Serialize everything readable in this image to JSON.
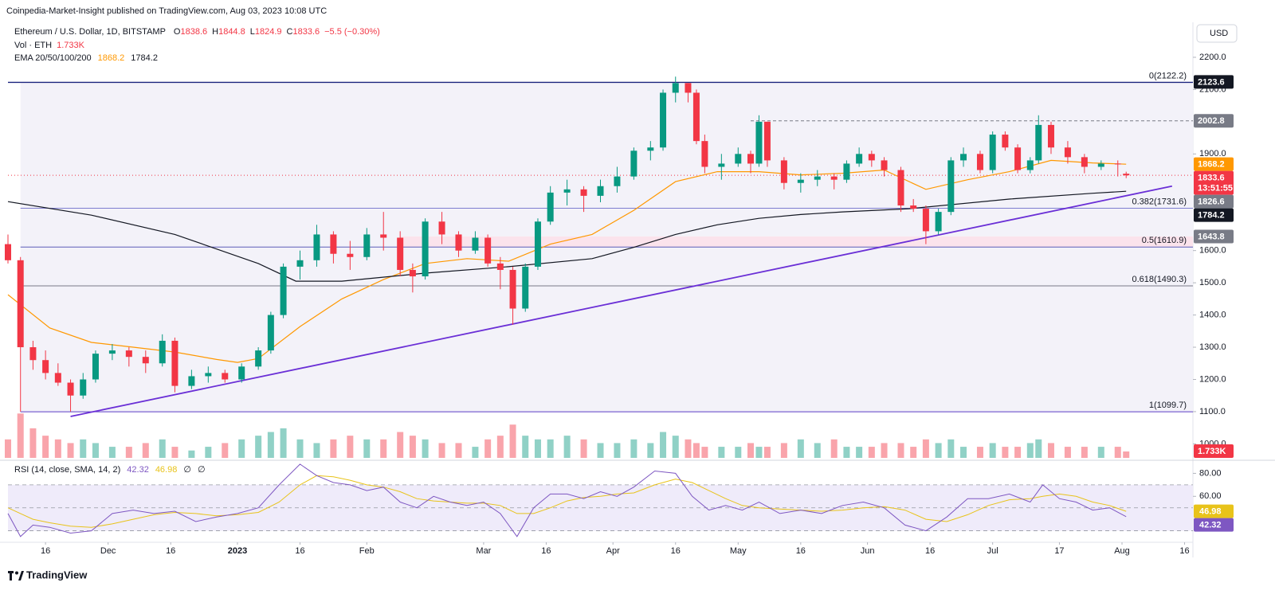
{
  "header": {
    "publisher": "Coinpedia-Market-Insight published on TradingView.com, Aug 03, 2023 10:08 UTC",
    "brand": "TradingView"
  },
  "chart_data": [
    {
      "type": "candlestick",
      "title": "Ethereum / U.S. Dollar, 1D, BITSTAMP",
      "currency": "USD",
      "ohlc_labels": [
        "O",
        "H",
        "L",
        "C"
      ],
      "change_label": "−5.5 (−0.30%)",
      "volume_title": "Vol · ETH",
      "volume_label": "1.733K",
      "ema_title": "EMA 20/50/100/200",
      "up_color": "#089981",
      "down_color": "#f23645",
      "x": [
        0,
        3,
        6,
        9,
        12,
        15,
        18,
        21,
        25,
        29,
        33,
        37,
        40,
        44,
        48,
        52,
        56,
        60,
        63,
        66,
        70,
        74,
        78,
        82,
        86,
        90,
        94,
        97,
        100,
        104,
        108,
        112,
        115,
        118,
        121,
        124,
        127,
        130,
        134,
        138,
        142,
        146,
        150,
        154,
        157,
        160,
        163,
        165,
        167,
        171,
        175,
        178,
        180,
        182,
        186,
        190,
        194,
        198,
        201,
        204,
        207,
        210,
        214,
        217,
        220,
        223,
        226,
        229,
        233,
        236,
        239,
        242,
        245,
        247,
        250,
        254,
        258,
        262,
        266,
        268
      ],
      "open": [
        1620,
        1570,
        1300,
        1260,
        1220,
        1190,
        1150,
        1200,
        1280,
        1290,
        1270,
        1250,
        1320,
        1180,
        1210,
        1220,
        1200,
        1240,
        1290,
        1400,
        1550,
        1570,
        1650,
        1590,
        1580,
        1650,
        1640,
        1540,
        1520,
        1690,
        1650,
        1600,
        1640,
        1560,
        1540,
        1420,
        1550,
        1690,
        1780,
        1790,
        1770,
        1800,
        1830,
        1910,
        1920,
        2090,
        2120,
        2090,
        1940,
        1860,
        1870,
        1900,
        1870,
        2000,
        1880,
        1810,
        1820,
        1830,
        1820,
        1870,
        1900,
        1880,
        1850,
        1740,
        1730,
        1660,
        1720,
        1880,
        1900,
        1850,
        1960,
        1920,
        1850,
        1880,
        1990,
        1920,
        1890,
        1860,
        1870,
        1838.6
      ],
      "high": [
        1650,
        1580,
        1320,
        1290,
        1250,
        1200,
        1220,
        1290,
        1310,
        1300,
        1290,
        1340,
        1330,
        1230,
        1240,
        1230,
        1250,
        1300,
        1410,
        1560,
        1600,
        1680,
        1660,
        1630,
        1670,
        1720,
        1660,
        1560,
        1700,
        1720,
        1660,
        1660,
        1650,
        1580,
        1550,
        1560,
        1700,
        1800,
        1820,
        1800,
        1820,
        1860,
        1920,
        1940,
        2100,
        2140,
        2120,
        2100,
        1960,
        1900,
        1920,
        1910,
        2020,
        2000,
        1890,
        1840,
        1850,
        1840,
        1880,
        1920,
        1910,
        1890,
        1860,
        1760,
        1740,
        1730,
        1890,
        1920,
        1910,
        1970,
        1970,
        1930,
        1890,
        2020,
        2000,
        1940,
        1900,
        1880,
        1880,
        1844.8
      ],
      "low": [
        1560,
        1100,
        1230,
        1200,
        1180,
        1100,
        1140,
        1190,
        1260,
        1240,
        1220,
        1240,
        1160,
        1170,
        1190,
        1190,
        1190,
        1230,
        1280,
        1390,
        1510,
        1550,
        1560,
        1540,
        1570,
        1600,
        1520,
        1470,
        1510,
        1620,
        1580,
        1590,
        1550,
        1480,
        1370,
        1410,
        1540,
        1680,
        1740,
        1720,
        1750,
        1780,
        1820,
        1880,
        1910,
        2060,
        2060,
        1930,
        1840,
        1820,
        1860,
        1840,
        1860,
        1860,
        1790,
        1780,
        1800,
        1790,
        1810,
        1860,
        1860,
        1830,
        1720,
        1720,
        1620,
        1650,
        1710,
        1860,
        1840,
        1840,
        1910,
        1840,
        1840,
        1870,
        1900,
        1870,
        1840,
        1850,
        1830,
        1824.9
      ],
      "close": [
        1570,
        1300,
        1260,
        1220,
        1190,
        1150,
        1200,
        1280,
        1290,
        1270,
        1250,
        1320,
        1180,
        1210,
        1220,
        1200,
        1240,
        1290,
        1400,
        1550,
        1570,
        1650,
        1590,
        1580,
        1650,
        1640,
        1540,
        1520,
        1690,
        1650,
        1600,
        1640,
        1560,
        1540,
        1420,
        1550,
        1690,
        1780,
        1790,
        1770,
        1800,
        1830,
        1910,
        1920,
        2090,
        2120,
        2090,
        1940,
        1860,
        1870,
        1900,
        1870,
        2000,
        1880,
        1810,
        1820,
        1830,
        1820,
        1870,
        1900,
        1880,
        1850,
        1740,
        1730,
        1660,
        1720,
        1880,
        1900,
        1850,
        1960,
        1920,
        1850,
        1880,
        1990,
        1920,
        1890,
        1860,
        1870,
        1868,
        1833.6
      ],
      "volume": [
        5,
        12,
        8,
        6,
        5,
        4,
        5,
        4,
        3,
        3,
        4,
        5,
        3,
        2,
        3,
        4,
        5,
        6,
        7,
        8,
        5,
        4,
        5,
        6,
        5,
        5,
        7,
        6,
        5,
        4,
        4,
        3,
        5,
        6,
        9,
        6,
        5,
        5,
        6,
        5,
        4,
        4,
        5,
        4,
        7,
        6,
        5,
        4,
        3,
        3,
        3,
        4,
        3,
        3,
        4,
        5,
        4,
        5,
        3,
        3,
        3,
        4,
        4,
        3,
        5,
        4,
        5,
        3,
        3,
        4,
        3,
        3,
        4,
        5,
        4,
        3,
        3,
        3,
        3,
        1.733
      ],
      "volume_lim": [
        0,
        14
      ],
      "xlim": [
        0,
        284
      ],
      "xticks": [
        {
          "value": 9,
          "label": "16"
        },
        {
          "value": 24,
          "label": "Dec"
        },
        {
          "value": 39,
          "label": "16"
        },
        {
          "value": 55,
          "label": "2023"
        },
        {
          "value": 70,
          "label": "16"
        },
        {
          "value": 86,
          "label": "Feb"
        },
        {
          "value": 114,
          "label": "Mar"
        },
        {
          "value": 129,
          "label": "16"
        },
        {
          "value": 145,
          "label": "Apr"
        },
        {
          "value": 160,
          "label": "16"
        },
        {
          "value": 175,
          "label": "May"
        },
        {
          "value": 190,
          "label": "16"
        },
        {
          "value": 206,
          "label": "Jun"
        },
        {
          "value": 221,
          "label": "16"
        },
        {
          "value": 236,
          "label": "Jul"
        },
        {
          "value": 252,
          "label": "17"
        },
        {
          "value": 267,
          "label": "Aug"
        },
        {
          "value": 282,
          "label": "16"
        }
      ],
      "ylim": [
        1000,
        2300
      ],
      "yticks": [
        {
          "value": 2200,
          "label": "2200.0"
        },
        {
          "value": 2100,
          "label": "2100.0"
        },
        {
          "value": 1900,
          "label": "1900.0"
        },
        {
          "value": 1600,
          "label": "1600.0"
        },
        {
          "value": 1500,
          "label": "1500.0"
        },
        {
          "value": 1400,
          "label": "1400.0"
        },
        {
          "value": 1300,
          "label": "1300.0"
        },
        {
          "value": 1200,
          "label": "1200.0"
        },
        {
          "value": 1100,
          "label": "1100.0"
        },
        {
          "value": 1000,
          "label": "1000.0"
        }
      ],
      "ema": [
        {
          "color": "#ff9800",
          "x": [
            0,
            10,
            20,
            30,
            40,
            50,
            55,
            60,
            70,
            80,
            90,
            100,
            110,
            120,
            130,
            140,
            150,
            160,
            170,
            180,
            190,
            200,
            210,
            220,
            230,
            240,
            250,
            260,
            268
          ],
          "values": [
            1463,
            1360,
            1315,
            1300,
            1285,
            1262,
            1253,
            1265,
            1364,
            1450,
            1510,
            1560,
            1575,
            1567,
            1620,
            1650,
            1725,
            1814,
            1845,
            1845,
            1835,
            1840,
            1850,
            1790,
            1820,
            1845,
            1880,
            1872,
            1868.2
          ]
        },
        {
          "color": "#131722",
          "x": [
            0,
            20,
            40,
            60,
            69,
            80,
            100,
            120,
            140,
            150,
            160,
            170,
            180,
            190,
            200,
            216,
            240,
            260,
            268
          ],
          "values": [
            1752,
            1710,
            1650,
            1560,
            1505,
            1505,
            1530,
            1550,
            1575,
            1610,
            1650,
            1680,
            1700,
            1712,
            1720,
            1730,
            1760,
            1778,
            1784.2
          ]
        }
      ],
      "fib": {
        "x_start": 3,
        "fill": "#f3f2f9",
        "levels": [
          {
            "value": 2122.2,
            "label": "0(2122.2)",
            "color": "#1a237e"
          },
          {
            "value": 1731.6,
            "label": "0.382(1731.6)",
            "color": "#7d7dcf"
          },
          {
            "value": 1610.9,
            "label": "0.5(1610.9)",
            "color": "#5c5cb8"
          },
          {
            "value": 1490.3,
            "label": "0.618(1490.3)",
            "color": "#787b86"
          },
          {
            "value": 1099.7,
            "label": "1(1099.7)",
            "color": "#5b3cc4"
          }
        ]
      },
      "zone": {
        "low": 1610.9,
        "high": 1643.8,
        "x_start": 94,
        "color": "#fbe3ec"
      },
      "trendline": {
        "x": [
          15,
          279
        ],
        "values": [
          1085,
          1800
        ],
        "color": "#6a2fd6"
      },
      "resistance": {
        "value": 2002.8,
        "x_start": 178,
        "color": "#787b86"
      },
      "price_labels": [
        {
          "value": 2123.6,
          "color": "#131722"
        },
        {
          "value": 1826.6,
          "color": "#787b86"
        }
      ],
      "countdown": "13:51:55"
    },
    {
      "type": "line",
      "title": "RSI (14, close, SMA, 14, 2)",
      "empty_values": [
        "∅",
        "∅"
      ],
      "x": [
        0,
        3,
        6,
        10,
        15,
        20,
        25,
        30,
        35,
        40,
        45,
        50,
        55,
        60,
        65,
        70,
        74,
        78,
        82,
        86,
        90,
        94,
        98,
        102,
        106,
        110,
        114,
        118,
        122,
        126,
        130,
        134,
        138,
        142,
        146,
        150,
        155,
        160,
        164,
        168,
        172,
        176,
        180,
        185,
        190,
        195,
        200,
        205,
        210,
        215,
        220,
        225,
        230,
        235,
        240,
        245,
        248,
        252,
        256,
        260,
        264,
        268
      ],
      "series": [
        {
          "color": "#7e57c2",
          "values": [
            45,
            25,
            35,
            33,
            28,
            30,
            45,
            48,
            45,
            47,
            38,
            42,
            45,
            50,
            70,
            88,
            78,
            72,
            70,
            65,
            68,
            55,
            50,
            60,
            55,
            52,
            55,
            45,
            25,
            50,
            62,
            62,
            58,
            64,
            60,
            68,
            82,
            80,
            60,
            48,
            52,
            48,
            55,
            45,
            48,
            45,
            52,
            55,
            50,
            35,
            30,
            42,
            58,
            58,
            62,
            55,
            70,
            58,
            55,
            48,
            50,
            42.32
          ]
        },
        {
          "color": "#e8c31a",
          "values": [
            50,
            45,
            40,
            37,
            34,
            33,
            36,
            40,
            44,
            46,
            45,
            43,
            44,
            46,
            55,
            70,
            78,
            77,
            74,
            70,
            68,
            64,
            58,
            56,
            55,
            54,
            54,
            52,
            45,
            45,
            50,
            56,
            59,
            60,
            62,
            63,
            70,
            75,
            72,
            65,
            58,
            52,
            50,
            49,
            48,
            47,
            48,
            50,
            51,
            48,
            40,
            38,
            44,
            52,
            57,
            58,
            60,
            62,
            60,
            55,
            52,
            46.98
          ]
        }
      ],
      "ylim": [
        20,
        90
      ],
      "yticks": [
        {
          "value": 80,
          "label": "80.00"
        },
        {
          "value": 60,
          "label": "60.00"
        }
      ],
      "levels": [
        70,
        50,
        30
      ],
      "band_color": "#efebfa"
    }
  ]
}
